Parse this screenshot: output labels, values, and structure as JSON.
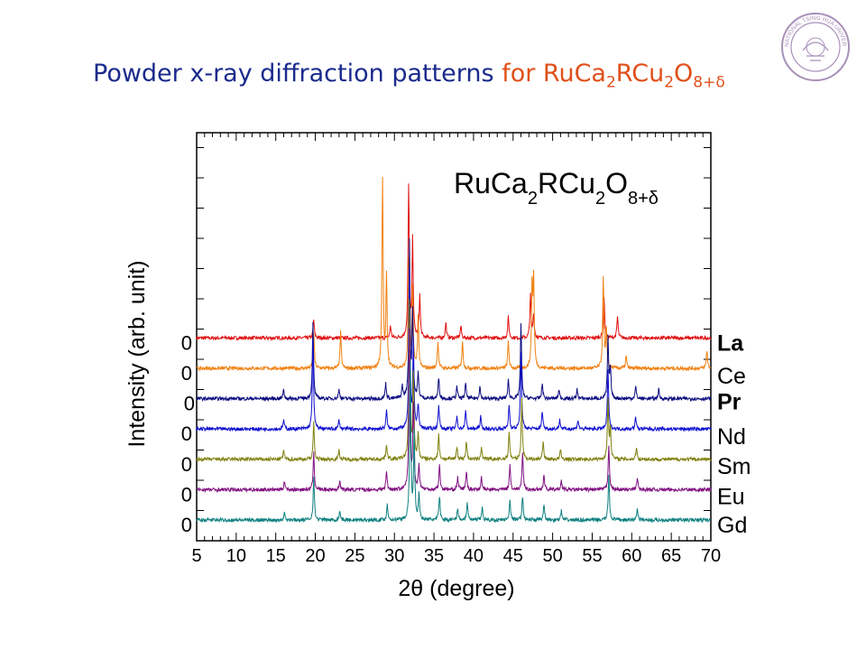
{
  "slide": {
    "title_main": "Powder x-ray diffraction patterns",
    "title_for": "for",
    "formula": {
      "p1": "RuCa",
      "s1": "2",
      "p2": "RCu",
      "s2": "2",
      "p3": "O",
      "s3": "8+δ"
    },
    "colors": {
      "title_main": "#1a2a8c",
      "title_formula": "#e0501a"
    }
  },
  "logo": {
    "icon": "university-seal-icon",
    "text": "NATIONAL TSING HUA UNIVERSITY",
    "color": "#a890b8"
  },
  "chart_data": {
    "type": "line",
    "xlabel": "2θ (degree)",
    "ylabel": "Intensity (arb. unit)",
    "xlim": [
      5,
      70
    ],
    "x_ticks": [
      5,
      10,
      15,
      20,
      25,
      30,
      35,
      40,
      45,
      50,
      55,
      60,
      65,
      70
    ],
    "annotation": {
      "p1": "RuCa",
      "s1": "2",
      "p2": "RCu",
      "s2": "2",
      "p3": "O",
      "s3": "8+δ"
    },
    "grid": false,
    "y_zero_label": "0",
    "series": [
      {
        "name": "La",
        "color": "#e01010",
        "peaks": [
          [
            19.8,
            6
          ],
          [
            29.5,
            4
          ],
          [
            31.8,
            50
          ],
          [
            32.3,
            32
          ],
          [
            33.2,
            14
          ],
          [
            36.5,
            5
          ],
          [
            38.4,
            4
          ],
          [
            44.4,
            7
          ],
          [
            47.2,
            14
          ],
          [
            47.6,
            8
          ],
          [
            56.5,
            14
          ],
          [
            58.2,
            7
          ]
        ]
      },
      {
        "name": "Ce",
        "color": "#f08010",
        "peaks": [
          [
            19.8,
            12
          ],
          [
            23.2,
            12
          ],
          [
            28.5,
            62
          ],
          [
            29.0,
            30
          ],
          [
            31.8,
            36
          ],
          [
            32.3,
            26
          ],
          [
            33.0,
            17
          ],
          [
            35.5,
            9
          ],
          [
            38.6,
            9
          ],
          [
            44.4,
            9
          ],
          [
            47.4,
            26
          ],
          [
            47.6,
            28
          ],
          [
            56.4,
            30
          ],
          [
            56.8,
            12
          ],
          [
            59.3,
            4
          ],
          [
            69.5,
            6
          ]
        ]
      },
      {
        "name": "Pr",
        "color": "#0c0c80",
        "peaks": [
          [
            16.0,
            3
          ],
          [
            19.7,
            25
          ],
          [
            23.0,
            3
          ],
          [
            28.9,
            5
          ],
          [
            31.0,
            4
          ],
          [
            31.9,
            52
          ],
          [
            32.3,
            28
          ],
          [
            33.0,
            8
          ],
          [
            35.6,
            7
          ],
          [
            37.9,
            4
          ],
          [
            39.0,
            5
          ],
          [
            40.8,
            4
          ],
          [
            44.4,
            6
          ],
          [
            46.0,
            25
          ],
          [
            48.7,
            5
          ],
          [
            50.8,
            3
          ],
          [
            53.1,
            3
          ],
          [
            57.0,
            20
          ],
          [
            57.3,
            10
          ],
          [
            60.5,
            4
          ],
          [
            63.4,
            3
          ]
        ]
      },
      {
        "name": "Nd",
        "color": "#1010d0",
        "peaks": [
          [
            16.0,
            3
          ],
          [
            19.7,
            30
          ],
          [
            23.0,
            3
          ],
          [
            29.0,
            6
          ],
          [
            31.9,
            52
          ],
          [
            32.4,
            28
          ],
          [
            33.0,
            8
          ],
          [
            35.6,
            8
          ],
          [
            37.9,
            4
          ],
          [
            39.0,
            6
          ],
          [
            40.9,
            4
          ],
          [
            44.5,
            8
          ],
          [
            46.0,
            25
          ],
          [
            48.7,
            6
          ],
          [
            50.9,
            3
          ],
          [
            53.2,
            3
          ],
          [
            57.0,
            20
          ],
          [
            60.5,
            4
          ]
        ]
      },
      {
        "name": "Sm",
        "color": "#808010",
        "peaks": [
          [
            16.0,
            3
          ],
          [
            19.8,
            12
          ],
          [
            23.0,
            3
          ],
          [
            29.0,
            5
          ],
          [
            31.9,
            52
          ],
          [
            32.4,
            28
          ],
          [
            33.0,
            8
          ],
          [
            35.6,
            8
          ],
          [
            37.9,
            4
          ],
          [
            39.1,
            6
          ],
          [
            41.0,
            4
          ],
          [
            44.5,
            9
          ],
          [
            46.1,
            20
          ],
          [
            48.8,
            6
          ],
          [
            51.0,
            3
          ],
          [
            57.0,
            20
          ],
          [
            57.3,
            10
          ],
          [
            60.6,
            4
          ]
        ]
      },
      {
        "name": "Eu",
        "color": "#801080",
        "peaks": [
          [
            16.1,
            3
          ],
          [
            19.8,
            12
          ],
          [
            23.1,
            3
          ],
          [
            29.0,
            6
          ],
          [
            31.9,
            52
          ],
          [
            32.4,
            28
          ],
          [
            33.1,
            8
          ],
          [
            35.7,
            8
          ],
          [
            38.0,
            4
          ],
          [
            39.1,
            6
          ],
          [
            41.0,
            4
          ],
          [
            44.6,
            8
          ],
          [
            46.2,
            12
          ],
          [
            48.9,
            5
          ],
          [
            51.1,
            3
          ],
          [
            57.1,
            15
          ],
          [
            60.7,
            4
          ]
        ]
      },
      {
        "name": "Gd",
        "color": "#108080",
        "peaks": [
          [
            16.1,
            3
          ],
          [
            19.8,
            14
          ],
          [
            23.1,
            3
          ],
          [
            29.1,
            5
          ],
          [
            32.0,
            52
          ],
          [
            32.5,
            28
          ],
          [
            33.1,
            8
          ],
          [
            35.7,
            8
          ],
          [
            38.0,
            4
          ],
          [
            39.2,
            6
          ],
          [
            41.1,
            4
          ],
          [
            44.6,
            7
          ],
          [
            46.2,
            8
          ],
          [
            48.9,
            5
          ],
          [
            51.1,
            3
          ],
          [
            57.1,
            15
          ],
          [
            60.7,
            4
          ]
        ]
      }
    ]
  }
}
